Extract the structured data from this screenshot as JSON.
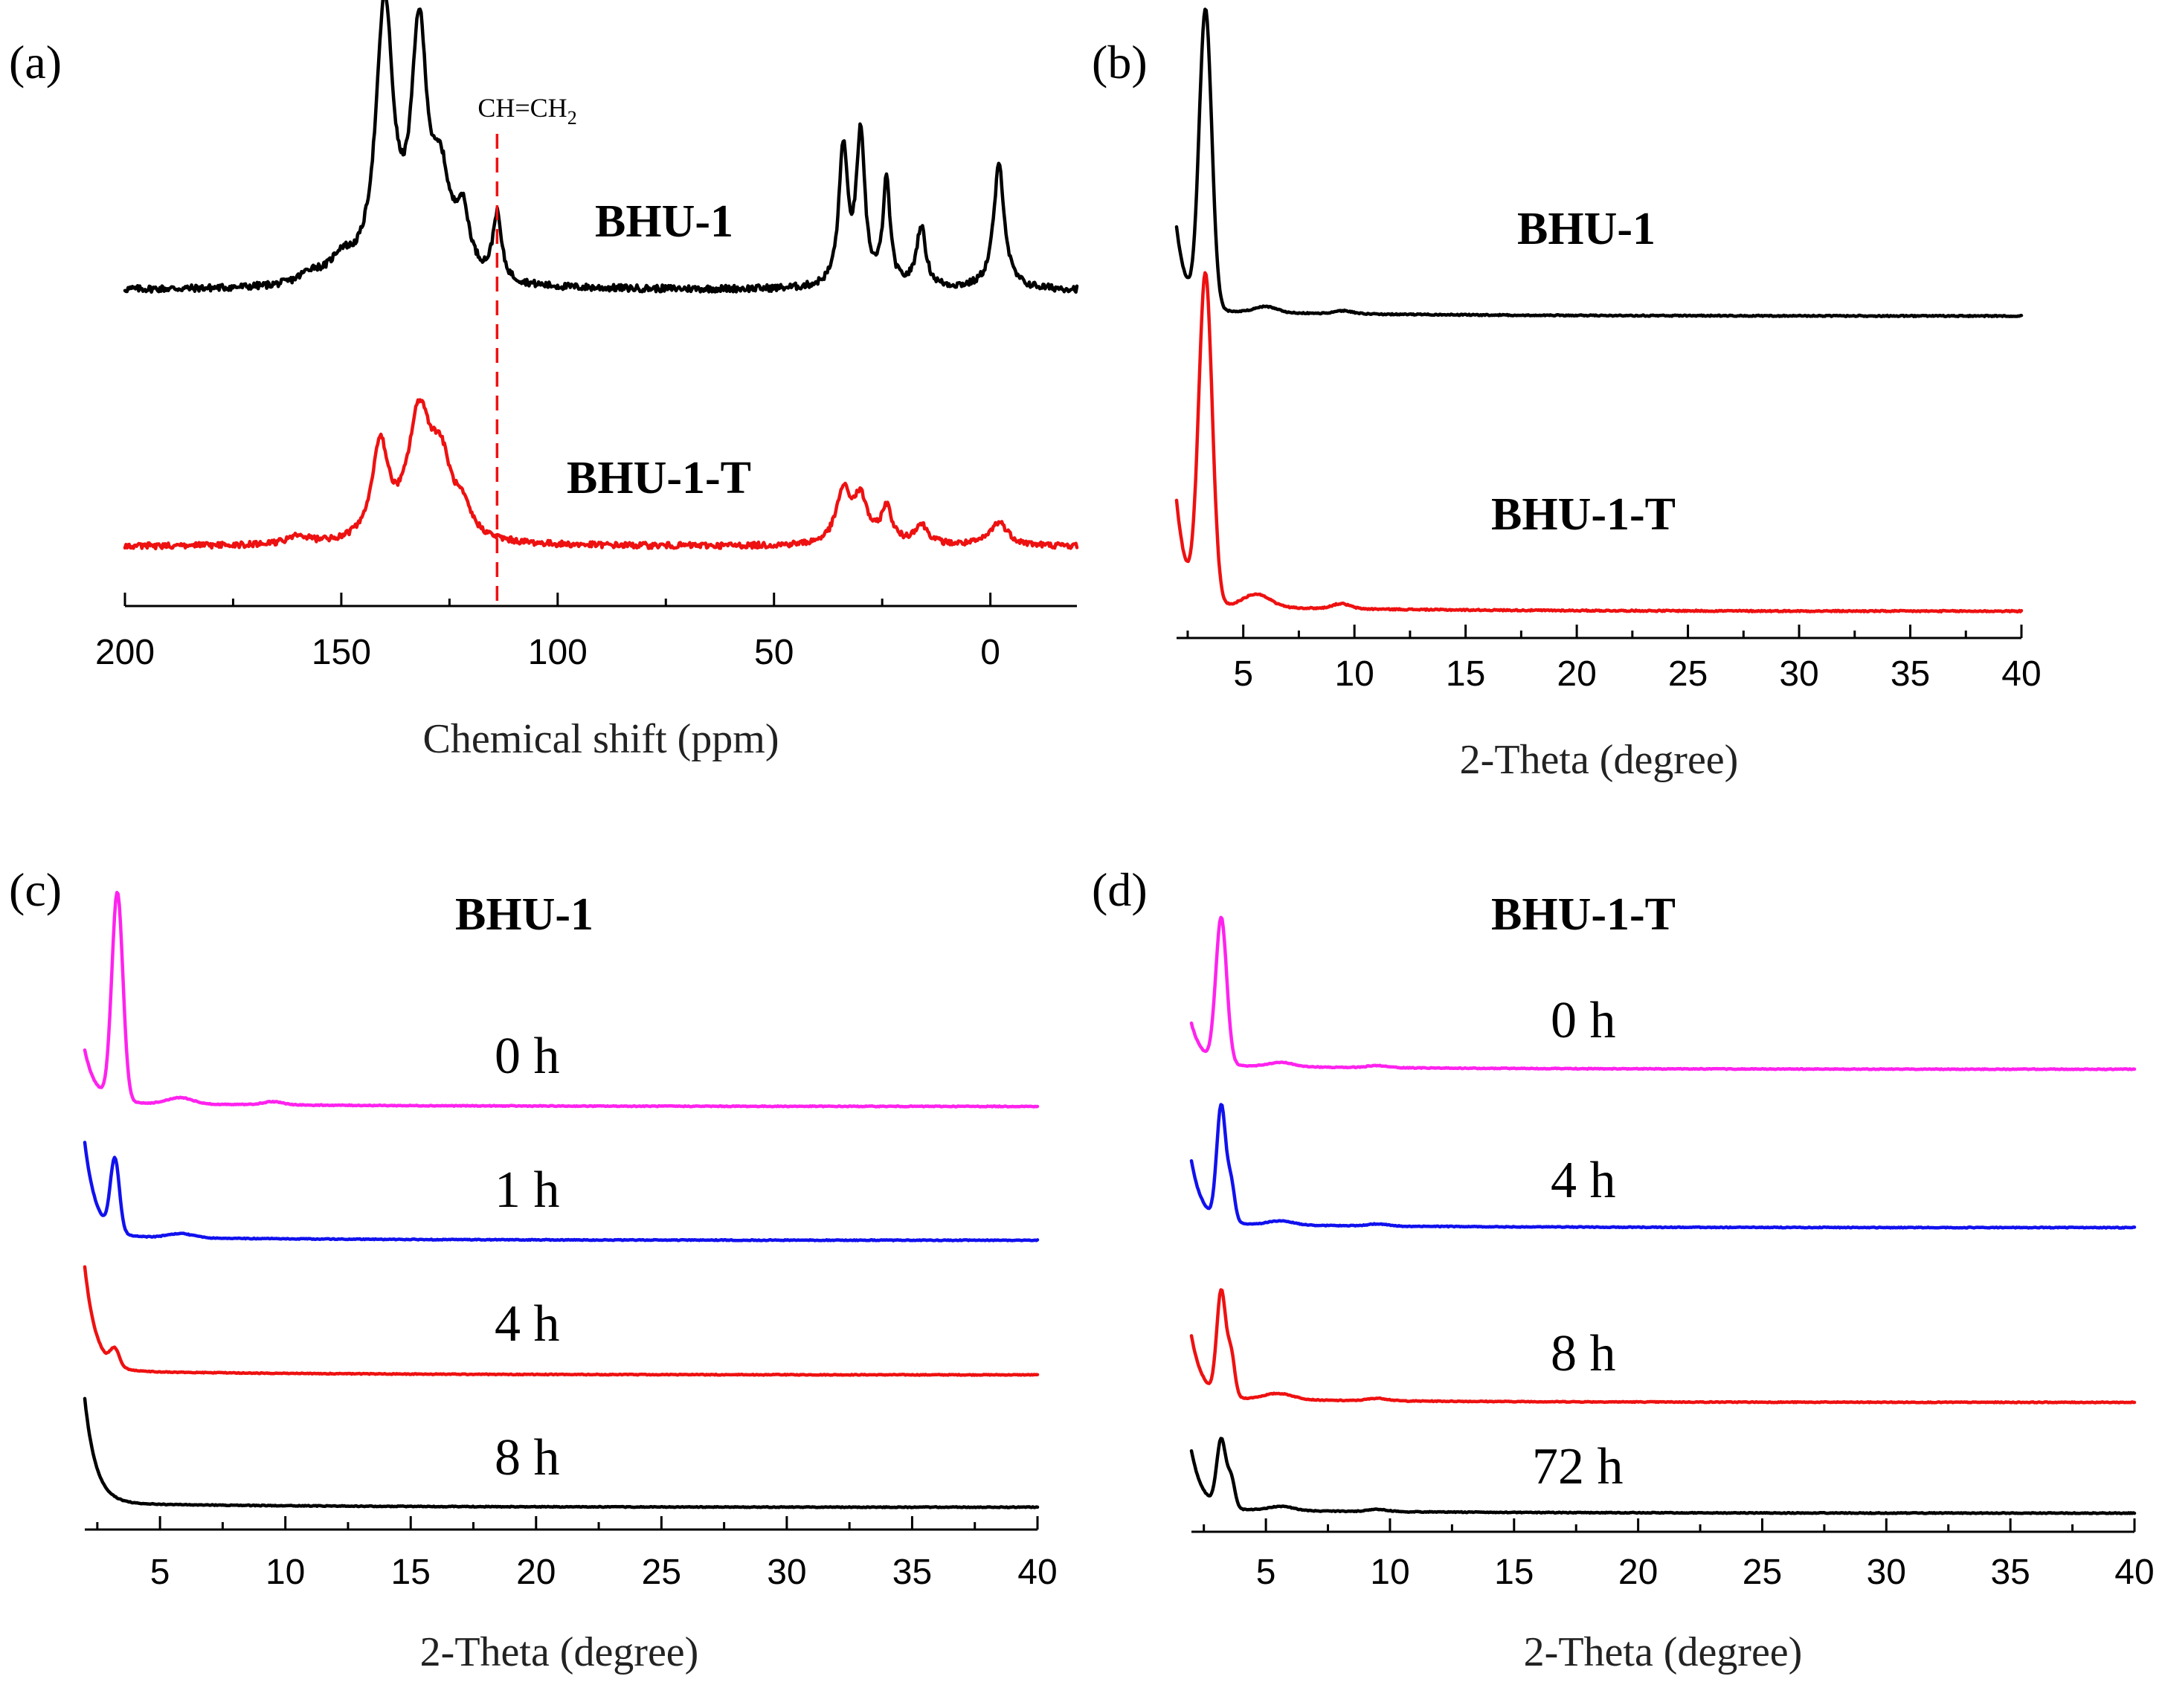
{
  "chart_data": [
    {
      "type": "line",
      "panel_label": "(a)",
      "xlabel": "Chemical shift (ppm)",
      "ylabel": "",
      "xlim": [
        200,
        -20
      ],
      "xticks": [
        200,
        150,
        100,
        50,
        0
      ],
      "xtick_labels": [
        "200",
        "150",
        "100",
        "50",
        "0"
      ],
      "reversed_x": true,
      "annotation": {
        "text": "CH=CH",
        "subscript": "2",
        "x": 114
      },
      "series": [
        {
          "name": "BHU-1",
          "color": "#000000",
          "baseline": 0,
          "noise": 0.025,
          "peaks": [
            [
              140,
              1.0,
              2.4
            ],
            [
              132,
              0.87,
              2.2
            ],
            [
              127,
              0.32,
              2.5
            ],
            [
              122,
              0.22,
              2.0
            ],
            [
              114,
              0.24,
              1.2
            ],
            [
              150,
              0.08,
              3
            ],
            [
              157,
              0.04,
              3
            ],
            [
              34,
              0.5,
              1.2
            ],
            [
              30,
              0.54,
              1.2
            ],
            [
              24,
              0.38,
              1.0
            ],
            [
              16,
              0.22,
              1.3
            ],
            [
              -2,
              0.45,
              1.5
            ]
          ]
        },
        {
          "name": "BHU-1-T",
          "color": "#ee1111",
          "baseline": 0,
          "noise": 0.03,
          "peaks": [
            [
              141,
              0.48,
              2.2
            ],
            [
              132,
              0.62,
              3.2
            ],
            [
              127,
              0.35,
              3.0
            ],
            [
              122,
              0.12,
              2.5
            ],
            [
              160,
              0.04,
              3
            ],
            [
              34,
              0.26,
              2.0
            ],
            [
              30,
              0.22,
              2.0
            ],
            [
              24,
              0.18,
              1.5
            ],
            [
              16,
              0.1,
              2.0
            ],
            [
              -2,
              0.12,
              2.5
            ]
          ]
        }
      ]
    },
    {
      "type": "line",
      "panel_label": "(b)",
      "xlabel": "2-Theta (degree)",
      "ylabel": "",
      "xlim": [
        2,
        40
      ],
      "xticks": [
        5,
        10,
        15,
        20,
        25,
        30,
        35,
        40
      ],
      "xtick_labels": [
        "5",
        "10",
        "15",
        "20",
        "25",
        "30",
        "35",
        "40"
      ],
      "series": [
        {
          "name": "BHU-1",
          "color": "#000000",
          "start": 0.28,
          "peak_x": 3.3,
          "peak_h": 1.0,
          "peak_w": 0.28,
          "extras": [
            [
              6.0,
              0.02,
              0.5
            ],
            [
              9.5,
              0.01,
              0.4
            ]
          ]
        },
        {
          "name": "BHU-1-T",
          "color": "#ee1111",
          "start": 0.32,
          "peak_x": 3.3,
          "peak_h": 1.0,
          "peak_w": 0.3,
          "extras": [
            [
              5.6,
              0.04,
              0.6
            ],
            [
              9.4,
              0.015,
              0.4
            ]
          ]
        }
      ]
    },
    {
      "type": "line",
      "panel_label": "(c)",
      "title": "BHU-1",
      "xlabel": "2-Theta (degree)",
      "ylabel": "",
      "xlim": [
        2,
        40
      ],
      "xticks": [
        5,
        10,
        15,
        20,
        25,
        30,
        35,
        40
      ],
      "xtick_labels": [
        "5",
        "10",
        "15",
        "20",
        "25",
        "30",
        "35",
        "40"
      ],
      "series": [
        {
          "name": "0 h",
          "color": "#ff22ee",
          "start": 0.25,
          "peak_x": 3.3,
          "peak_h": 1.0,
          "peak_w": 0.22,
          "extras": [
            [
              5.8,
              0.03,
              0.5
            ],
            [
              9.5,
              0.015,
              0.4
            ]
          ]
        },
        {
          "name": "1 h",
          "color": "#1111ee",
          "start": 0.45,
          "peak_x": 3.2,
          "peak_h": 0.35,
          "peak_w": 0.18,
          "extras": [
            [
              5.8,
              0.02,
              0.5
            ]
          ]
        },
        {
          "name": "4 h",
          "color": "#ee1111",
          "start": 0.5,
          "peak_x": 3.2,
          "peak_h": 0.08,
          "peak_w": 0.18,
          "extras": []
        },
        {
          "name": "8 h",
          "color": "#000000",
          "start": 0.5,
          "peak_x": 3.2,
          "peak_h": 0.0,
          "peak_w": 0.18,
          "extras": []
        }
      ]
    },
    {
      "type": "line",
      "panel_label": "(d)",
      "title": "BHU-1-T",
      "xlabel": "2-Theta (degree)",
      "ylabel": "",
      "xlim": [
        2,
        40
      ],
      "xticks": [
        5,
        10,
        15,
        20,
        25,
        30,
        35,
        40
      ],
      "xtick_labels": [
        "5",
        "10",
        "15",
        "20",
        "25",
        "30",
        "35",
        "40"
      ],
      "series": [
        {
          "name": "0 h",
          "color": "#ff22ee",
          "start": 0.2,
          "peak_x": 3.2,
          "peak_h": 0.7,
          "peak_w": 0.22,
          "extras": [
            [
              5.6,
              0.02,
              0.5
            ],
            [
              9.5,
              0.01,
              0.4
            ]
          ]
        },
        {
          "name": "4 h",
          "color": "#1111ee",
          "start": 0.3,
          "peak_x": 3.2,
          "peak_h": 0.55,
          "peak_w": 0.18,
          "extras": [
            [
              3.6,
              0.18,
              0.15
            ],
            [
              5.6,
              0.02,
              0.5
            ],
            [
              9.5,
              0.01,
              0.4
            ]
          ]
        },
        {
          "name": "8 h",
          "color": "#ee1111",
          "start": 0.3,
          "peak_x": 3.2,
          "peak_h": 0.5,
          "peak_w": 0.18,
          "extras": [
            [
              3.6,
              0.2,
              0.15
            ],
            [
              5.5,
              0.03,
              0.6
            ],
            [
              9.5,
              0.012,
              0.4
            ]
          ]
        },
        {
          "name": "72 h",
          "color": "#000000",
          "start": 0.28,
          "peak_x": 3.2,
          "peak_h": 0.32,
          "peak_w": 0.18,
          "extras": [
            [
              3.6,
              0.14,
              0.15
            ],
            [
              5.6,
              0.02,
              0.5
            ],
            [
              9.5,
              0.01,
              0.4
            ]
          ]
        }
      ]
    }
  ]
}
